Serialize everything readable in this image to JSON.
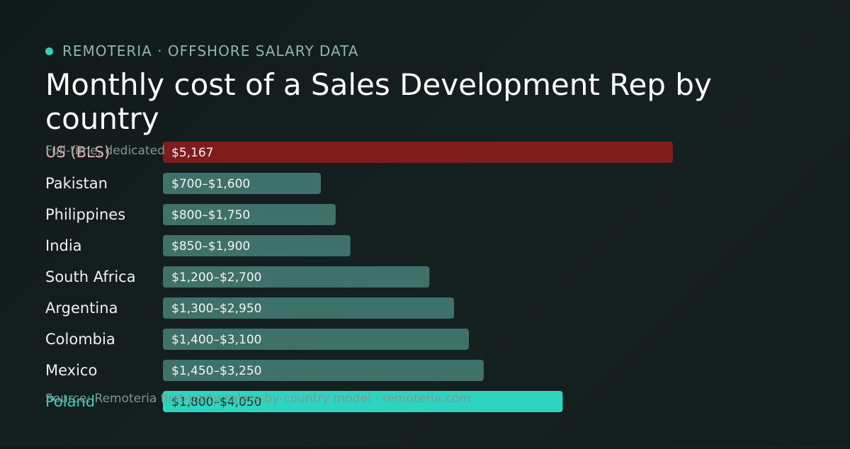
{
  "brand": {
    "label": "REMOTERIA · OFFSHORE SALARY DATA"
  },
  "title": "Monthly cost of a Sales Development Rep by country",
  "subtitle": "Full-time, dedicated",
  "source": "Source: Remoteria first-party salary-by-country model · remoteria.com",
  "colors": {
    "accent": "#2dd4bf",
    "us_bar": "#7f1d1d",
    "range_bar": "#3f716b",
    "highlight_bar": "#2dd4bf"
  },
  "chart_data": {
    "type": "bar",
    "orientation": "horizontal",
    "title": "Monthly cost of a Sales Development Rep by country",
    "categories": [
      "US (BLS)",
      "Pakistan",
      "Philippines",
      "India",
      "South Africa",
      "Argentina",
      "Colombia",
      "Mexico",
      "Poland"
    ],
    "values": [
      5167,
      1600,
      1750,
      1900,
      2700,
      2950,
      3100,
      3250,
      4050
    ],
    "value_labels": [
      "$5,167",
      "$700–$1,600",
      "$800–$1,750",
      "$850–$1,900",
      "$1,200–$2,700",
      "$1,300–$2,950",
      "$1,400–$3,100",
      "$1,450–$3,250",
      "$1,800–$4,050"
    ],
    "bar_styles": [
      "us",
      "range",
      "range",
      "range",
      "range",
      "range",
      "range",
      "range",
      "highlight"
    ],
    "xlim": [
      0,
      5167
    ],
    "grid": false
  }
}
